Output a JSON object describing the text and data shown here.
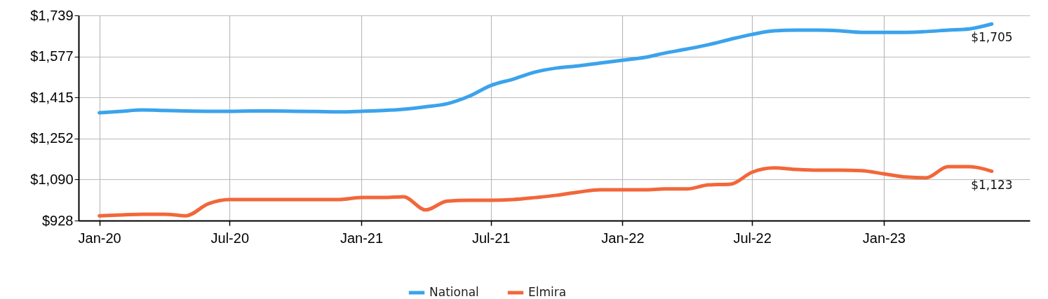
{
  "chart_data": {
    "type": "line",
    "x": [
      "2020-01",
      "2020-02",
      "2020-03",
      "2020-04",
      "2020-05",
      "2020-06",
      "2020-07",
      "2020-08",
      "2020-09",
      "2020-10",
      "2020-11",
      "2020-12",
      "2021-01",
      "2021-02",
      "2021-03",
      "2021-04",
      "2021-05",
      "2021-06",
      "2021-07",
      "2021-08",
      "2021-09",
      "2021-10",
      "2021-11",
      "2021-12",
      "2022-01",
      "2022-02",
      "2022-03",
      "2022-04",
      "2022-05",
      "2022-06",
      "2022-07",
      "2022-08",
      "2022-09",
      "2022-10",
      "2022-11",
      "2022-12",
      "2023-01",
      "2023-02",
      "2023-03",
      "2023-04",
      "2023-05",
      "2023-06"
    ],
    "series": [
      {
        "name": "National",
        "color": "#3ba3ec",
        "values": [
          1354,
          1360,
          1365,
          1363,
          1361,
          1360,
          1360,
          1361,
          1361,
          1360,
          1359,
          1358,
          1360,
          1363,
          1368,
          1378,
          1390,
          1420,
          1462,
          1487,
          1515,
          1531,
          1540,
          1551,
          1562,
          1573,
          1590,
          1606,
          1623,
          1645,
          1664,
          1678,
          1681,
          1681,
          1678,
          1672,
          1672,
          1672,
          1675,
          1681,
          1686,
          1705
        ],
        "value_labels": [
          null,
          null,
          null,
          null,
          null,
          null,
          null,
          null,
          null,
          null,
          null,
          null,
          null,
          null,
          null,
          null,
          null,
          null,
          null,
          null,
          null,
          null,
          null,
          null,
          null,
          null,
          null,
          null,
          null,
          null,
          null,
          null,
          null,
          null,
          null,
          null,
          null,
          null,
          null,
          null,
          null,
          "$1,705"
        ]
      },
      {
        "name": "Elmira",
        "color": "#f2673a",
        "values": [
          947,
          950,
          953,
          953,
          947,
          994,
          1011,
          1011,
          1011,
          1011,
          1011,
          1011,
          1019,
          1019,
          1022,
          970,
          1005,
          1008,
          1008,
          1011,
          1019,
          1028,
          1041,
          1050,
          1050,
          1050,
          1053,
          1053,
          1069,
          1072,
          1119,
          1136,
          1130,
          1127,
          1127,
          1125,
          1113,
          1100,
          1097,
          1141,
          1141,
          1123
        ],
        "value_labels": [
          null,
          null,
          null,
          null,
          null,
          null,
          null,
          null,
          null,
          null,
          null,
          null,
          null,
          null,
          null,
          null,
          null,
          null,
          null,
          null,
          null,
          null,
          null,
          null,
          null,
          null,
          null,
          null,
          null,
          null,
          null,
          null,
          null,
          null,
          null,
          null,
          null,
          null,
          null,
          null,
          null,
          "$1,123"
        ]
      }
    ],
    "xlim": [
      "2019-12-03",
      "2023-07-24"
    ],
    "xticks": [
      {
        "value": "2020-01",
        "label": "Jan-20"
      },
      {
        "value": "2020-07",
        "label": "Jul-20"
      },
      {
        "value": "2021-01",
        "label": "Jan-21"
      },
      {
        "value": "2021-07",
        "label": "Jul-21"
      },
      {
        "value": "2022-01",
        "label": "Jan-22"
      },
      {
        "value": "2022-07",
        "label": "Jul-22"
      },
      {
        "value": "2023-01",
        "label": "Jan-23"
      }
    ],
    "ylim": [
      928,
      1739
    ],
    "yticks": [
      {
        "value": 928,
        "label": "$928"
      },
      {
        "value": 1090,
        "label": "$1,090"
      },
      {
        "value": 1252,
        "label": "$1,252"
      },
      {
        "value": 1415,
        "label": "$1,415"
      },
      {
        "value": 1577,
        "label": "$1,577"
      },
      {
        "value": 1739,
        "label": "$1,739"
      }
    ],
    "grid": true,
    "legend": "bottom",
    "marker": "none",
    "line_style": "solid"
  }
}
